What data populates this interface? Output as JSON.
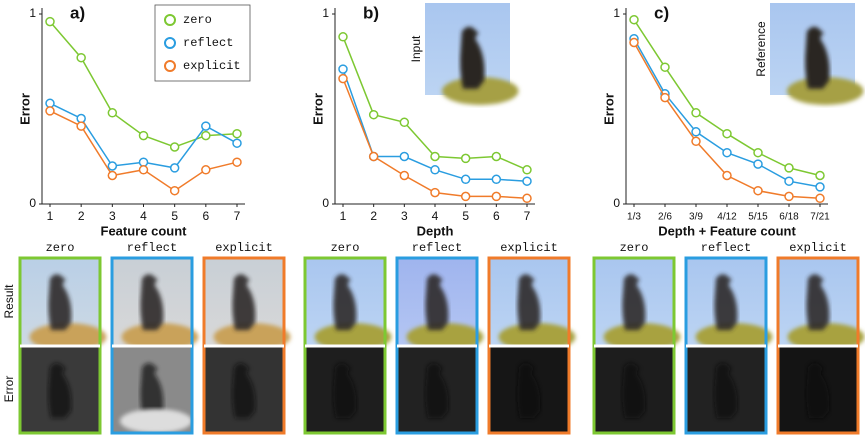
{
  "chart_data": [
    {
      "type": "line",
      "panel": "a)",
      "xlabel": "Feature count",
      "ylabel": "Error",
      "categories": [
        "1",
        "2",
        "3",
        "4",
        "5",
        "6",
        "7"
      ],
      "ylim": [
        0,
        1
      ],
      "yticks": [
        0,
        1
      ],
      "legend": "top right",
      "series": [
        {
          "name": "zero",
          "color": "#7dc832",
          "values": [
            0.96,
            0.77,
            0.48,
            0.36,
            0.3,
            0.36,
            0.37
          ]
        },
        {
          "name": "reflect",
          "color": "#2a9de0",
          "values": [
            0.53,
            0.45,
            0.2,
            0.22,
            0.19,
            0.41,
            0.32
          ]
        },
        {
          "name": "explicit",
          "color": "#f07b2a",
          "values": [
            0.49,
            0.41,
            0.15,
            0.18,
            0.07,
            0.18,
            0.22
          ]
        }
      ]
    },
    {
      "type": "line",
      "panel": "b)",
      "xlabel": "Depth",
      "ylabel": "Error",
      "inset": "Input",
      "categories": [
        "1",
        "2",
        "3",
        "4",
        "5",
        "6",
        "7"
      ],
      "ylim": [
        0,
        1
      ],
      "yticks": [
        0,
        1
      ],
      "series": [
        {
          "color": "#7dc832",
          "values": [
            0.88,
            0.47,
            0.43,
            0.25,
            0.24,
            0.25,
            0.18
          ]
        },
        {
          "color": "#2a9de0",
          "values": [
            0.71,
            0.25,
            0.25,
            0.18,
            0.13,
            0.13,
            0.12
          ]
        },
        {
          "color": "#f07b2a",
          "values": [
            0.66,
            0.25,
            0.15,
            0.06,
            0.04,
            0.04,
            0.03
          ]
        }
      ]
    },
    {
      "type": "line",
      "panel": "c)",
      "xlabel": "Depth + Feature count",
      "ylabel": "Error",
      "inset": "Reference",
      "categories": [
        "1/3",
        "2/6",
        "3/9",
        "4/12",
        "5/15",
        "6/18",
        "7/21"
      ],
      "ylim": [
        0,
        1
      ],
      "yticks": [
        0,
        1
      ],
      "series": [
        {
          "color": "#7dc832",
          "values": [
            0.97,
            0.72,
            0.48,
            0.37,
            0.27,
            0.19,
            0.15
          ]
        },
        {
          "color": "#2a9de0",
          "values": [
            0.87,
            0.58,
            0.38,
            0.27,
            0.21,
            0.12,
            0.09
          ]
        },
        {
          "color": "#f07b2a",
          "values": [
            0.85,
            0.56,
            0.33,
            0.15,
            0.07,
            0.04,
            0.03
          ]
        }
      ]
    }
  ],
  "image_grid": {
    "rows": [
      "Result",
      "Error"
    ],
    "groups": [
      {
        "columns": [
          "zero",
          "reflect",
          "explicit"
        ]
      },
      {
        "columns": [
          "zero",
          "reflect",
          "explicit"
        ]
      },
      {
        "columns": [
          "zero",
          "reflect",
          "explicit"
        ]
      }
    ]
  }
}
